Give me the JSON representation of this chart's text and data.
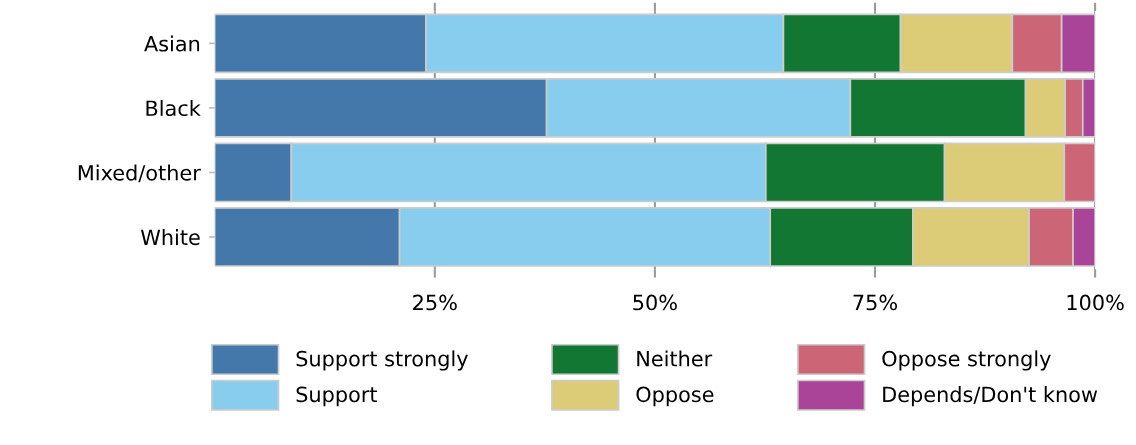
{
  "chart_data": {
    "type": "bar",
    "orientation": "horizontal",
    "stacked": true,
    "categories": [
      "Asian",
      "Black",
      "Mixed/other",
      "White"
    ],
    "series": [
      {
        "name": "Support strongly",
        "color": "#4477aa",
        "values": [
          24.0,
          37.7,
          8.7,
          21.0
        ]
      },
      {
        "name": "Support",
        "color": "#88ccee",
        "values": [
          40.6,
          34.5,
          53.9,
          42.1
        ]
      },
      {
        "name": "Neither",
        "color": "#117733",
        "values": [
          13.3,
          19.9,
          20.3,
          16.2
        ]
      },
      {
        "name": "Oppose",
        "color": "#ddcc77",
        "values": [
          12.7,
          4.5,
          13.6,
          13.2
        ]
      },
      {
        "name": "Oppose strongly",
        "color": "#cc6677",
        "values": [
          5.6,
          2.0,
          3.5,
          5.0
        ]
      },
      {
        "name": "Depends/Don't know",
        "color": "#aa4499",
        "values": [
          3.8,
          1.4,
          null,
          2.5
        ]
      }
    ],
    "xlim": [
      0,
      100
    ],
    "xticks": [
      {
        "value": 25,
        "label": "25%"
      },
      {
        "value": 50,
        "label": "50%"
      },
      {
        "value": 75,
        "label": "75%"
      },
      {
        "value": 100,
        "label": "100%"
      }
    ],
    "grid": "x",
    "legend": "bottom"
  }
}
